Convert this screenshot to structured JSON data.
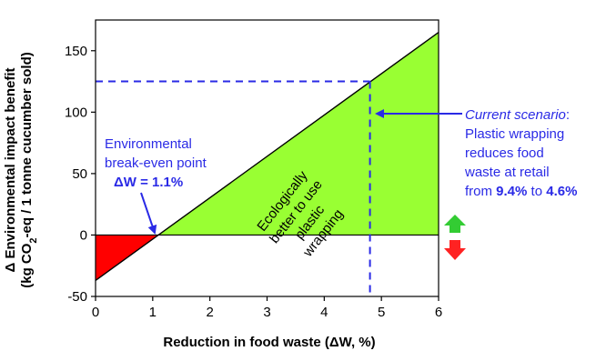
{
  "chart_data": {
    "type": "area",
    "xlabel": "Reduction in food waste (ΔW, %)",
    "ylabel_line1": "Δ Environmental impact benefit",
    "ylabel_line2_pre": "(kg CO",
    "ylabel_line2_sub": "2",
    "ylabel_line2_post": "-eq / 1 tonne cucumber sold)",
    "xlim": [
      0,
      6
    ],
    "ylim": [
      -50,
      175
    ],
    "x_ticks": [
      0,
      1,
      2,
      3,
      4,
      5,
      6
    ],
    "y_ticks": [
      -50,
      0,
      50,
      100,
      150
    ],
    "series": [
      {
        "x": [
          0,
          1.1,
          6
        ],
        "y": [
          -37,
          0,
          165
        ]
      }
    ],
    "break_even": {
      "x": 1.1,
      "y": 0
    },
    "current_scenario": {
      "x": 4.8,
      "y": 125
    },
    "colors": {
      "negative_fill": "#ff0000",
      "positive_fill": "#99ff33",
      "annotation": "#2a2ae6",
      "arrow_up": "#33cc33",
      "arrow_down": "#ff2222"
    },
    "annotations": {
      "breakeven_line1": "Environmental",
      "breakeven_line2": "break-even point",
      "breakeven_line3": "ΔW = 1.1%",
      "region_line1": "Ecologically",
      "region_line2": "better to use",
      "region_line3": "plastic",
      "region_line4": "wrapping",
      "scenario_title": "Current scenario",
      "scenario_colon": ":",
      "scenario_line2": "Plastic wrapping",
      "scenario_line3": "reduces food",
      "scenario_line4": "waste at retail",
      "scenario_from": "from ",
      "scenario_val1": "9.4%",
      "scenario_to": " to ",
      "scenario_val2": "4.6%"
    }
  }
}
